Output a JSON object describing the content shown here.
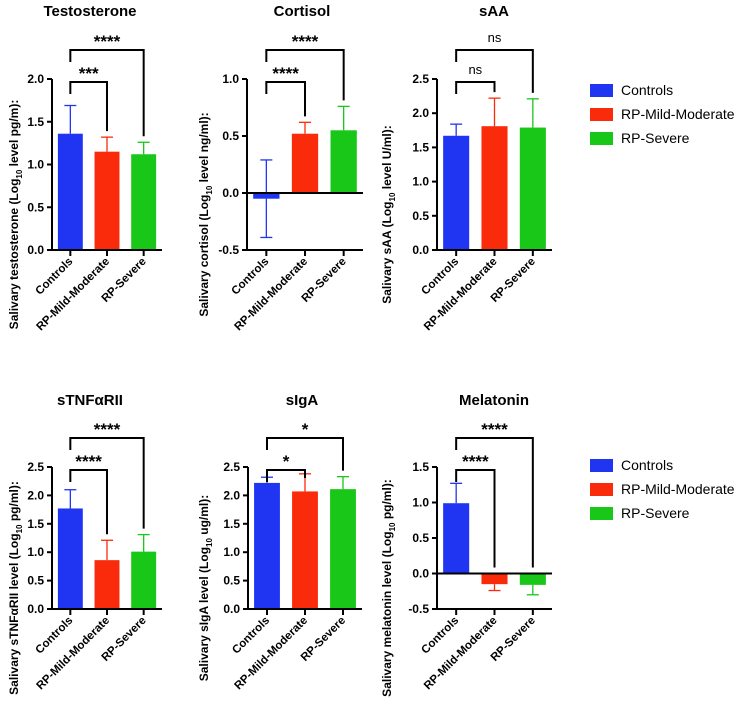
{
  "colors": {
    "Controls": "#1f35f2",
    "RP-Mild-Moderate": "#fa2b0a",
    "RP-Severe": "#18c718",
    "axis": "#000000"
  },
  "legend": [
    "Controls",
    "RP-Mild-Moderate",
    "RP-Severe"
  ],
  "chart_data": [
    {
      "type": "bar",
      "title": "Testosterone",
      "ylabel": {
        "pre": "Salivary testosterone (Log",
        "sub": "10",
        "post": " level pg/m):"
      },
      "categories": [
        "Controls",
        "RP-Mild-Moderate",
        "RP-Severe"
      ],
      "values": [
        1.36,
        1.15,
        1.12
      ],
      "error_upper": [
        1.69,
        1.32,
        1.26
      ],
      "ylim": [
        0,
        2.0
      ],
      "yticks": [
        "0.0",
        "0.5",
        "1.0",
        "1.5",
        "2.0"
      ],
      "significance": [
        {
          "pair": [
            "Controls",
            "RP-Mild-Moderate"
          ],
          "label": "***"
        },
        {
          "pair": [
            "Controls",
            "RP-Severe"
          ],
          "label": "****"
        }
      ]
    },
    {
      "type": "bar",
      "title": "Cortisol",
      "ylabel": {
        "pre": "Salivary cortisol (Log",
        "sub": "10",
        "post": " level ng/ml):"
      },
      "categories": [
        "Controls",
        "RP-Mild-Moderate",
        "RP-Severe"
      ],
      "values": [
        -0.05,
        0.52,
        0.55
      ],
      "error_upper": [
        0.29,
        0.62,
        0.76
      ],
      "error_lower": [
        -0.39,
        null,
        null
      ],
      "ylim": [
        -0.5,
        1.0
      ],
      "yticks": [
        "-0.5",
        "0.0",
        "0.5",
        "1.0"
      ],
      "significance": [
        {
          "pair": [
            "Controls",
            "RP-Mild-Moderate"
          ],
          "label": "****"
        },
        {
          "pair": [
            "Controls",
            "RP-Severe"
          ],
          "label": "****"
        }
      ]
    },
    {
      "type": "bar",
      "title": "sAA",
      "ylabel": {
        "pre": "Salivary sAA (Log",
        "sub": "10",
        "post": " level U/ml):"
      },
      "categories": [
        "Controls",
        "RP-Mild-Moderate",
        "RP-Severe"
      ],
      "values": [
        1.67,
        1.81,
        1.79
      ],
      "error_upper": [
        1.84,
        2.22,
        2.21
      ],
      "ylim": [
        0,
        2.5
      ],
      "yticks": [
        "0.0",
        "0.5",
        "1.0",
        "1.5",
        "2.0",
        "2.5"
      ],
      "significance": [
        {
          "pair": [
            "Controls",
            "RP-Mild-Moderate"
          ],
          "label": "ns"
        },
        {
          "pair": [
            "Controls",
            "RP-Severe"
          ],
          "label": "ns"
        }
      ]
    },
    {
      "type": "bar",
      "title": "sTNFαRII",
      "ylabel": {
        "pre": "Salivary  sTNFαRII level (Log",
        "sub": "10",
        "post": " pg/ml):"
      },
      "categories": [
        "Controls",
        "RP-Mild-Moderate",
        "RP-Severe"
      ],
      "values": [
        1.77,
        0.86,
        1.01
      ],
      "error_upper": [
        2.1,
        1.21,
        1.31
      ],
      "ylim": [
        0,
        2.5
      ],
      "yticks": [
        "0.0",
        "0.5",
        "1.0",
        "1.5",
        "2.0",
        "2.5"
      ],
      "significance": [
        {
          "pair": [
            "Controls",
            "RP-Mild-Moderate"
          ],
          "label": "****"
        },
        {
          "pair": [
            "Controls",
            "RP-Severe"
          ],
          "label": "****"
        }
      ]
    },
    {
      "type": "bar",
      "title": "sIgA",
      "ylabel": {
        "pre": "Salivary sIgA level (Log",
        "sub": "10",
        "post": " ug/ml):"
      },
      "categories": [
        "Controls",
        "RP-Mild-Moderate",
        "RP-Severe"
      ],
      "values": [
        2.22,
        2.07,
        2.11
      ],
      "error_upper": [
        2.32,
        2.38,
        2.33
      ],
      "ylim": [
        0,
        2.5
      ],
      "yticks": [
        "0.0",
        "0.5",
        "1.0",
        "1.5",
        "2.0",
        "2.5"
      ],
      "significance": [
        {
          "pair": [
            "Controls",
            "RP-Mild-Moderate"
          ],
          "label": "*"
        },
        {
          "pair": [
            "Controls",
            "RP-Severe"
          ],
          "label": "*"
        }
      ]
    },
    {
      "type": "bar",
      "title": "Melatonin",
      "ylabel": {
        "pre": "Salivary melatonin level (Log",
        "sub": "10",
        "post": " pg/ml):"
      },
      "categories": [
        "Controls",
        "RP-Mild-Moderate",
        "RP-Severe"
      ],
      "values": [
        0.99,
        -0.15,
        -0.16
      ],
      "error_upper": [
        1.27,
        null,
        null
      ],
      "error_lower": [
        null,
        -0.24,
        -0.3
      ],
      "ylim": [
        -0.5,
        1.5
      ],
      "yticks": [
        "-0.5",
        "0.0",
        "0.5",
        "1.0",
        "1.5"
      ],
      "significance": [
        {
          "pair": [
            "Controls",
            "RP-Mild-Moderate"
          ],
          "label": "****"
        },
        {
          "pair": [
            "Controls",
            "RP-Severe"
          ],
          "label": "****"
        }
      ]
    }
  ]
}
